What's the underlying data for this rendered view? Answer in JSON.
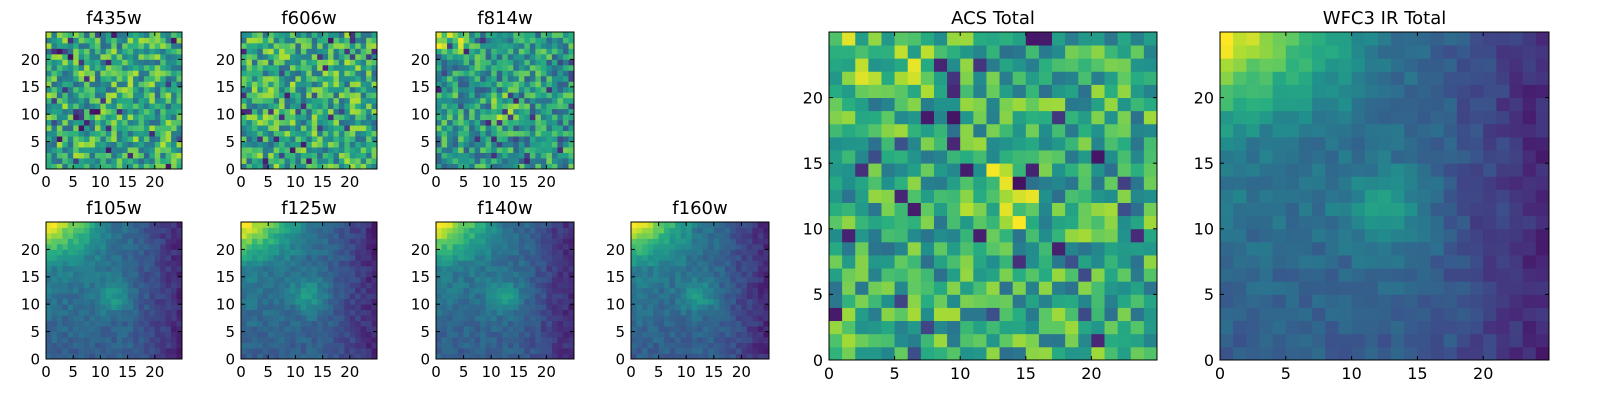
{
  "chart_data": [
    {
      "type": "heatmap",
      "title": "f435w",
      "xticks": [
        0,
        5,
        10,
        15,
        20
      ],
      "yticks": [
        0,
        5,
        10,
        15,
        20
      ],
      "xlim": [
        0,
        25
      ],
      "ylim": [
        0,
        25
      ],
      "grid": false,
      "colormap": "viridis",
      "rows": 25,
      "cols": 25
    },
    {
      "type": "heatmap",
      "title": "f606w",
      "xticks": [
        0,
        5,
        10,
        15,
        20
      ],
      "yticks": [
        0,
        5,
        10,
        15,
        20
      ],
      "xlim": [
        0,
        25
      ],
      "ylim": [
        0,
        25
      ],
      "grid": false,
      "colormap": "viridis",
      "rows": 25,
      "cols": 25
    },
    {
      "type": "heatmap",
      "title": "f814w",
      "xticks": [
        0,
        5,
        10,
        15,
        20
      ],
      "yticks": [
        0,
        5,
        10,
        15,
        20
      ],
      "xlim": [
        0,
        25
      ],
      "ylim": [
        0,
        25
      ],
      "grid": false,
      "colormap": "viridis",
      "rows": 25,
      "cols": 25
    },
    {
      "type": "heatmap",
      "title": "f105w",
      "xticks": [
        0,
        5,
        10,
        15,
        20
      ],
      "yticks": [
        0,
        5,
        10,
        15,
        20
      ],
      "xlim": [
        0,
        25
      ],
      "ylim": [
        0,
        25
      ],
      "grid": false,
      "colormap": "viridis",
      "rows": 25,
      "cols": 25
    },
    {
      "type": "heatmap",
      "title": "f125w",
      "xticks": [
        0,
        5,
        10,
        15,
        20
      ],
      "yticks": [
        0,
        5,
        10,
        15,
        20
      ],
      "xlim": [
        0,
        25
      ],
      "ylim": [
        0,
        25
      ],
      "grid": false,
      "colormap": "viridis",
      "rows": 25,
      "cols": 25
    },
    {
      "type": "heatmap",
      "title": "f140w",
      "xticks": [
        0,
        5,
        10,
        15,
        20
      ],
      "yticks": [
        0,
        5,
        10,
        15,
        20
      ],
      "xlim": [
        0,
        25
      ],
      "ylim": [
        0,
        25
      ],
      "grid": false,
      "colormap": "viridis",
      "rows": 25,
      "cols": 25
    },
    {
      "type": "heatmap",
      "title": "f160w",
      "xticks": [
        0,
        5,
        10,
        15,
        20
      ],
      "yticks": [
        0,
        5,
        10,
        15,
        20
      ],
      "xlim": [
        0,
        25
      ],
      "ylim": [
        0,
        25
      ],
      "grid": false,
      "colormap": "viridis",
      "rows": 25,
      "cols": 25
    },
    {
      "type": "heatmap",
      "title": "ACS Total",
      "xticks": [
        0,
        5,
        10,
        15,
        20
      ],
      "yticks": [
        0,
        5,
        10,
        15,
        20
      ],
      "xlim": [
        0,
        25
      ],
      "ylim": [
        0,
        25
      ],
      "grid": false,
      "colormap": "viridis",
      "rows": 25,
      "cols": 25
    },
    {
      "type": "heatmap",
      "title": "WFC3 IR Total",
      "xticks": [
        0,
        5,
        10,
        15,
        20
      ],
      "yticks": [
        0,
        5,
        10,
        15,
        20
      ],
      "xlim": [
        0,
        25
      ],
      "ylim": [
        0,
        25
      ],
      "grid": false,
      "colormap": "viridis",
      "rows": 25,
      "cols": 25
    }
  ],
  "colors": {
    "background": "#ffffff",
    "axes": "#000000"
  }
}
